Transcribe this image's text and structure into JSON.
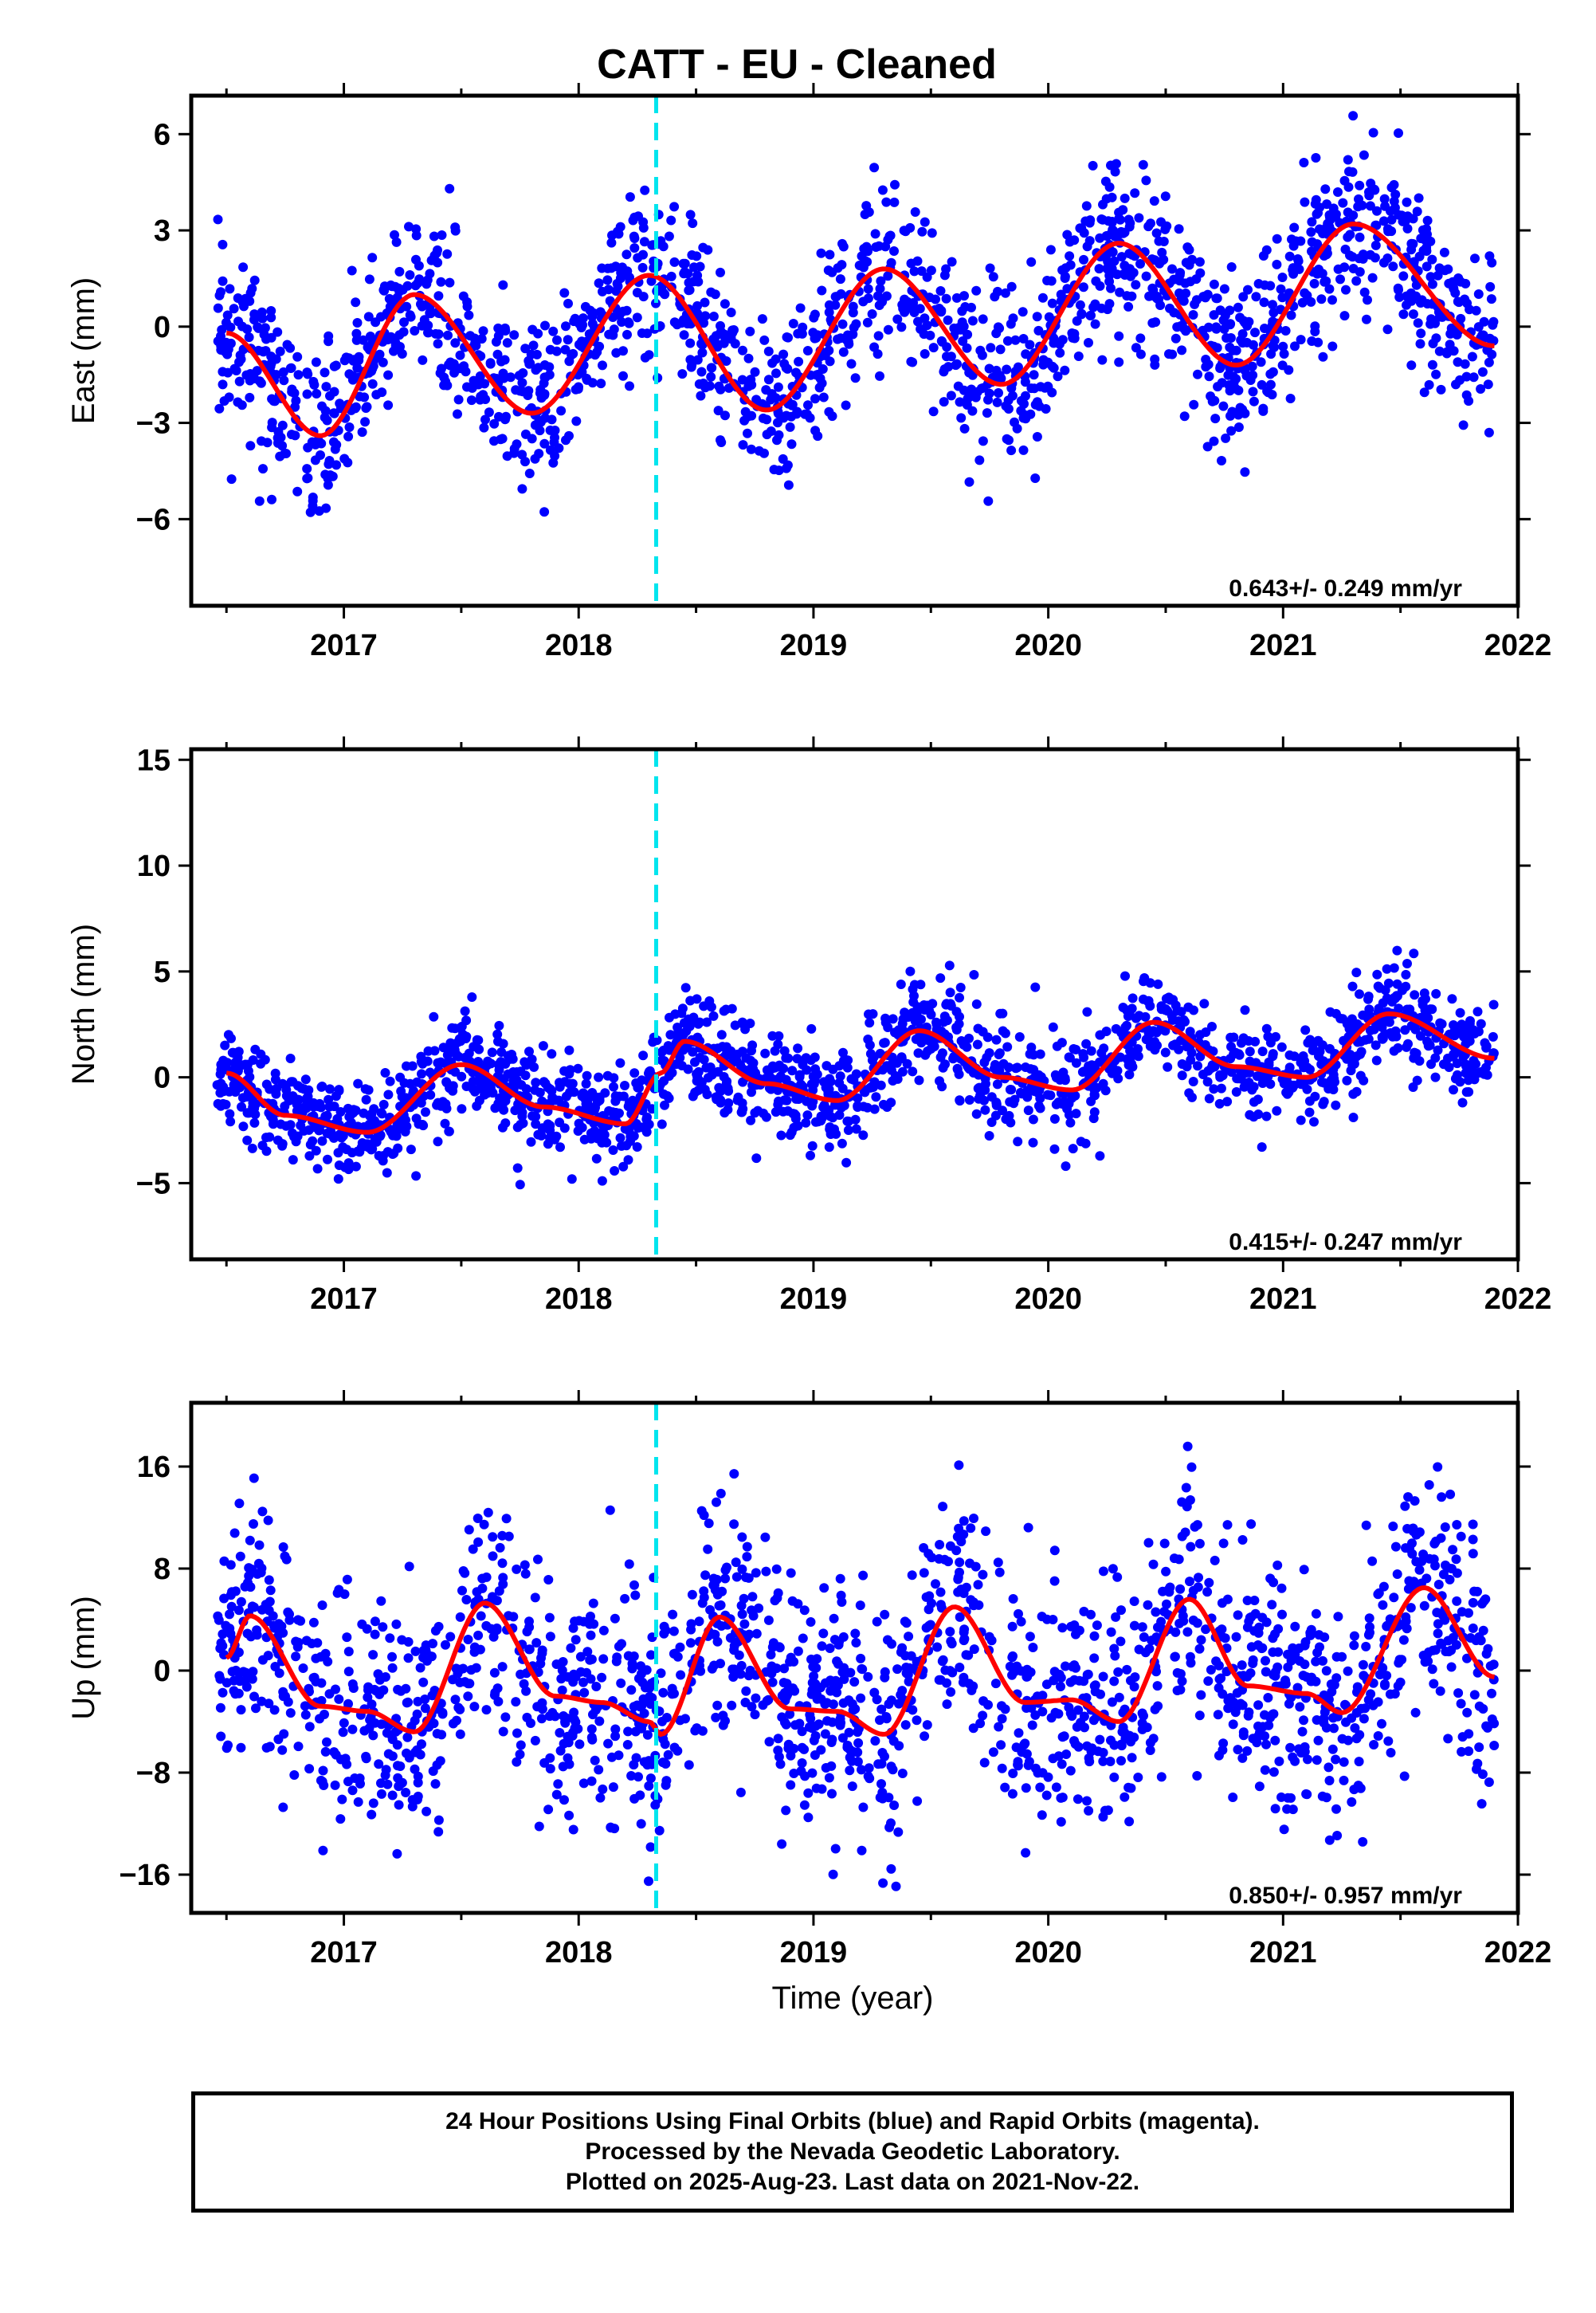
{
  "chart_data": {
    "title": "CATT  - EU - Cleaned",
    "xlabel": "Time (year)",
    "x_tick_labels": [
      "2017",
      "2018",
      "2019",
      "2020",
      "2021",
      "2022"
    ],
    "x_range": [
      2016.35,
      2022.0
    ],
    "vertical_marker": {
      "x": 2018.33,
      "color": "#00e5ee",
      "style": "dashed"
    },
    "colors": {
      "points": "#0000ff",
      "fit": "#ff0000",
      "frame": "#000000"
    },
    "panels": [
      {
        "type": "scatter",
        "ylabel": "East (mm)",
        "ylim": [
          -8.7,
          7.2
        ],
        "y_ticks": [
          6,
          3,
          0,
          -3,
          -6
        ],
        "y_tick_labels": [
          "6",
          "3",
          "0",
          "−3",
          "−6"
        ],
        "rate_label": "0.643+/- 0.249 mm/yr",
        "fit": {
          "x": [
            2016.5,
            2016.9,
            2017.3,
            2017.8,
            2018.3,
            2018.8,
            2019.3,
            2019.8,
            2020.3,
            2020.8,
            2021.3,
            2021.9
          ],
          "y": [
            -0.2,
            -3.4,
            1.0,
            -2.7,
            1.6,
            -2.6,
            1.8,
            -1.8,
            2.6,
            -1.2,
            3.2,
            -0.6
          ]
        },
        "scatter": {
          "n": 1800,
          "spread": 1.3
        }
      },
      {
        "type": "scatter",
        "ylabel": "North (mm)",
        "ylim": [
          -8.6,
          15.5
        ],
        "y_ticks": [
          15,
          10,
          5,
          0,
          -5
        ],
        "y_tick_labels": [
          "15",
          "10",
          "5",
          "0",
          "−5"
        ],
        "rate_label": "0.415+/- 0.247 mm/yr",
        "fit": {
          "x": [
            2016.5,
            2016.75,
            2017.1,
            2017.5,
            2017.85,
            2018.2,
            2018.35,
            2018.45,
            2018.8,
            2019.1,
            2019.45,
            2019.8,
            2020.1,
            2020.45,
            2020.8,
            2021.1,
            2021.45,
            2021.9
          ],
          "y": [
            0.2,
            -1.8,
            -2.6,
            0.6,
            -1.4,
            -2.2,
            0.2,
            1.7,
            -0.3,
            -1.1,
            2.2,
            0.0,
            -0.6,
            2.6,
            0.5,
            0.0,
            3.0,
            0.9
          ]
        },
        "scatter": {
          "n": 1800,
          "spread": 1.2
        }
      },
      {
        "type": "scatter",
        "ylabel": "Up (mm)",
        "ylim": [
          -19,
          21
        ],
        "y_ticks": [
          16,
          8,
          0,
          -8,
          -16
        ],
        "y_tick_labels": [
          "16",
          "8",
          "0",
          "−8",
          "−16"
        ],
        "rate_label": "0.850+/- 0.957 mm/yr",
        "fit": {
          "x": [
            2016.5,
            2016.6,
            2016.9,
            2017.1,
            2017.3,
            2017.6,
            2017.9,
            2018.1,
            2018.3,
            2018.35,
            2018.6,
            2018.9,
            2019.1,
            2019.3,
            2019.6,
            2019.9,
            2020.1,
            2020.3,
            2020.6,
            2020.85,
            2021.1,
            2021.25,
            2021.6,
            2021.9
          ],
          "y": [
            1.0,
            4.3,
            -2.8,
            -3.2,
            -4.8,
            5.3,
            -2.0,
            -2.5,
            -4.0,
            -5.0,
            4.2,
            -3.0,
            -3.2,
            -5.0,
            5.0,
            -2.5,
            -2.3,
            -4.0,
            5.6,
            -1.2,
            -1.8,
            -3.3,
            6.5,
            -0.5
          ]
        },
        "scatter": {
          "n": 1800,
          "spread": 4.6
        }
      }
    ]
  },
  "footer": {
    "line1": "24 Hour Positions Using Final Orbits (blue) and Rapid Orbits (magenta).",
    "line2": "Processed by the Nevada Geodetic Laboratory.",
    "line3": "Plotted on 2025-Aug-23. Last data on 2021-Nov-22."
  }
}
